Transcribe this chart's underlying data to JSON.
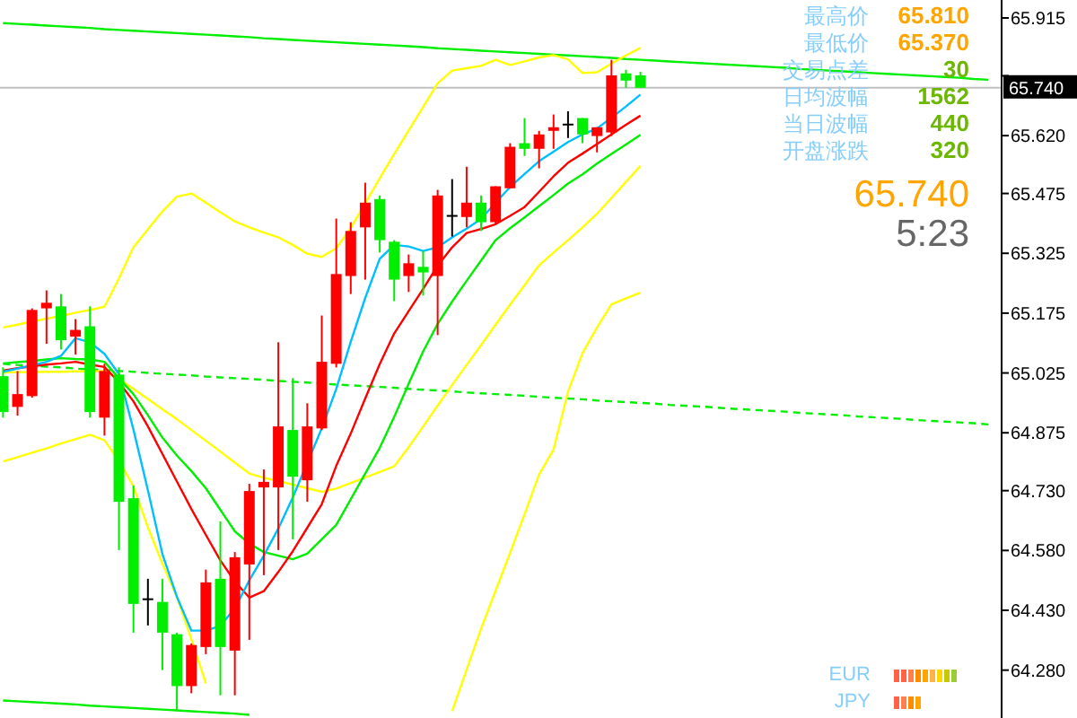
{
  "chart_data": {
    "type": "candlestick",
    "tick_labels": "y",
    "grid": false,
    "ylim": [
      64.16,
      65.96
    ],
    "yticks": [
      {
        "value": 64.28,
        "label": "64.280"
      },
      {
        "value": 64.43,
        "label": "64.430"
      },
      {
        "value": 64.58,
        "label": "64.580"
      },
      {
        "value": 64.73,
        "label": "64.730"
      },
      {
        "value": 64.875,
        "label": "64.875"
      },
      {
        "value": 65.025,
        "label": "65.025"
      },
      {
        "value": 65.175,
        "label": "65.175"
      },
      {
        "value": 65.325,
        "label": "65.325"
      },
      {
        "value": 65.475,
        "label": "65.475"
      },
      {
        "value": 65.62,
        "label": "65.620"
      },
      {
        "value": 65.77,
        "label": null
      },
      {
        "value": 65.915,
        "label": "65.915"
      }
    ],
    "categories": [
      null,
      null,
      null,
      null,
      null,
      null,
      null,
      null,
      null,
      null,
      null,
      null,
      null,
      null,
      null,
      null,
      null,
      null,
      null,
      null,
      null,
      null,
      null,
      null,
      null,
      null,
      null,
      null,
      null,
      null,
      null,
      null,
      null,
      null,
      null,
      null,
      null,
      null,
      null,
      null,
      null,
      null,
      null,
      null,
      null,
      null,
      null,
      null,
      null,
      null,
      null,
      null,
      null,
      null,
      null,
      null,
      null,
      null,
      null,
      null,
      null,
      null,
      null,
      null,
      null,
      null,
      null,
      null,
      null
    ],
    "colors": [
      "#00ee00",
      "#ff0000",
      "#ff0000",
      "#ff0000",
      "#00ee00",
      "#ff0000",
      "#00ee00",
      "#ff0000",
      "#00ee00",
      "#00ee00",
      "#000000",
      "#00ee00",
      "#00ee00",
      "#ff0000",
      "#ff0000",
      "#00ee00",
      "#ff0000",
      "#ff0000",
      "#ff0000",
      "#ff0000",
      "#00ee00",
      "#ff0000",
      "#ff0000",
      "#ff0000",
      "#ff0000",
      "#ff0000",
      "#00ee00",
      "#00ee00",
      "#ff0000",
      "#00ee00",
      "#ff0000",
      "#000000",
      "#ff0000",
      "#00ee00",
      "#ff0000",
      "#ff0000",
      "#00ee00",
      "#ff0000",
      "#ff0000",
      "#000000",
      "#00ee00",
      "#ff0000",
      "#ff0000",
      "#00ee00",
      "#00ee00",
      null,
      null,
      null,
      null,
      null,
      null,
      null,
      null,
      null,
      null,
      null,
      null,
      null,
      null,
      null,
      null,
      null,
      null,
      null,
      null,
      null,
      null,
      null,
      null
    ],
    "ohlc": [
      [
        65.017,
        65.039,
        64.913,
        64.927
      ],
      [
        64.94,
        65.03,
        64.918,
        64.972
      ],
      [
        64.967,
        65.187,
        64.963,
        65.183
      ],
      [
        65.187,
        65.232,
        65.098,
        65.201
      ],
      [
        65.192,
        65.223,
        65.084,
        65.107
      ],
      [
        65.116,
        65.16,
        65.071,
        65.133
      ],
      [
        65.142,
        65.192,
        64.913,
        64.927
      ],
      [
        64.913,
        65.048,
        64.868,
        65.03
      ],
      [
        65.021,
        65.039,
        64.581,
        64.702
      ],
      [
        64.711,
        64.743,
        64.374,
        64.446
      ],
      [
        64.46,
        64.509,
        64.392,
        64.46
      ],
      [
        64.451,
        64.509,
        64.28,
        64.374
      ],
      [
        64.37,
        64.374,
        64.177,
        64.24
      ],
      [
        64.24,
        64.347,
        64.222,
        64.343
      ],
      [
        64.338,
        64.532,
        64.32,
        64.5
      ],
      [
        64.509,
        64.653,
        64.217,
        64.338
      ],
      [
        64.329,
        64.576,
        64.217,
        64.563
      ],
      [
        64.545,
        64.747,
        64.356,
        64.729
      ],
      [
        64.738,
        64.783,
        64.518,
        64.752
      ],
      [
        64.738,
        65.102,
        64.581,
        64.891
      ],
      [
        64.882,
        65.012,
        64.608,
        64.765
      ],
      [
        64.756,
        64.949,
        64.702,
        64.891
      ],
      [
        64.886,
        65.169,
        64.882,
        65.053
      ],
      [
        65.048,
        65.412,
        65.039,
        65.273
      ],
      [
        65.268,
        65.403,
        65.223,
        65.381
      ],
      [
        65.39,
        65.502,
        65.259,
        65.452
      ],
      [
        65.461,
        65.47,
        65.327,
        65.358
      ],
      [
        65.354,
        65.358,
        65.205,
        65.259
      ],
      [
        65.268,
        65.322,
        65.228,
        65.3
      ],
      [
        65.291,
        65.331,
        65.219,
        65.277
      ],
      [
        65.268,
        65.484,
        65.12,
        65.47
      ],
      [
        65.421,
        65.511,
        65.367,
        65.421
      ],
      [
        65.416,
        65.542,
        65.39,
        65.452
      ],
      [
        65.452,
        65.47,
        65.381,
        65.403
      ],
      [
        65.403,
        65.493,
        65.399,
        65.493
      ],
      [
        65.488,
        65.601,
        65.488,
        65.592
      ],
      [
        65.601,
        65.664,
        65.569,
        65.587
      ],
      [
        65.587,
        65.632,
        65.538,
        65.623
      ],
      [
        65.632,
        65.673,
        65.587,
        65.641
      ],
      [
        65.65,
        65.681,
        65.614,
        65.65
      ],
      [
        65.664,
        65.664,
        65.601,
        65.623
      ],
      [
        65.619,
        65.641,
        65.578,
        65.641
      ],
      [
        65.628,
        65.81,
        65.619,
        65.771
      ],
      [
        65.776,
        65.785,
        65.74,
        65.758
      ],
      [
        65.771,
        65.78,
        65.74,
        65.74
      ],
      null,
      null,
      null,
      null,
      null,
      null,
      null,
      null,
      null,
      null,
      null,
      null,
      null,
      null,
      null,
      null,
      null,
      null,
      null,
      null,
      null,
      null,
      null,
      null
    ],
    "series": [
      {
        "type": "line",
        "color": "#00ee00",
        "values": [
          65.902,
          65.9,
          65.898,
          65.896,
          65.894,
          65.892,
          65.89,
          65.887,
          65.885,
          65.883,
          65.881,
          65.879,
          65.877,
          65.875,
          65.873,
          65.871,
          65.869,
          65.867,
          65.864,
          65.862,
          65.86,
          65.858,
          65.856,
          65.854,
          65.852,
          65.85,
          65.848,
          65.846,
          65.844,
          65.842,
          65.839,
          65.837,
          65.835,
          65.833,
          65.831,
          65.829,
          65.827,
          65.825,
          65.823,
          65.821,
          65.819,
          65.817,
          65.815,
          65.812,
          65.81,
          65.808,
          65.806,
          65.804,
          65.802,
          65.8,
          65.798,
          65.796,
          65.794,
          65.792,
          65.79,
          65.787,
          65.785,
          65.783,
          65.781,
          65.779,
          65.777,
          65.775,
          65.773,
          65.771,
          65.769,
          65.767,
          65.765,
          65.762,
          65.76
        ]
      },
      {
        "type": "line",
        "color": "#00ee00",
        "values": [
          64.204,
          64.202,
          64.2,
          64.198,
          64.196,
          64.194,
          64.191,
          64.189,
          64.187,
          64.185,
          64.183,
          64.181,
          64.179,
          64.177,
          64.175,
          64.173,
          64.171,
          64.168,
          null,
          null,
          null,
          null,
          null,
          null,
          null,
          null,
          null,
          null,
          null,
          null,
          null,
          null,
          null,
          null,
          null,
          null,
          null,
          null,
          null,
          null,
          null,
          null,
          null,
          null,
          null,
          null,
          null,
          null,
          null,
          null,
          null,
          null,
          null,
          null,
          null,
          null,
          null,
          null,
          null,
          null,
          null,
          null,
          null,
          null,
          null,
          null,
          null,
          null,
          null
        ]
      },
      {
        "type": "line",
        "color": "#00ee00",
        "line_style": "dashed",
        "values": [
          65.048,
          65.045,
          65.043,
          65.041,
          65.039,
          65.036,
          65.034,
          65.032,
          65.03,
          65.028,
          65.025,
          65.023,
          65.021,
          65.019,
          65.016,
          65.014,
          65.012,
          65.01,
          65.008,
          65.005,
          65.003,
          65.001,
          null,
          64.996,
          64.994,
          64.992,
          64.99,
          64.988,
          64.985,
          64.983,
          64.981,
          64.979,
          64.976,
          64.974,
          64.972,
          64.97,
          64.968,
          64.965,
          64.963,
          64.961,
          64.959,
          64.956,
          64.954,
          64.952,
          64.95,
          64.948,
          64.945,
          64.943,
          64.941,
          64.939,
          64.936,
          64.934,
          64.932,
          64.93,
          64.928,
          64.925,
          64.923,
          64.921,
          64.919,
          64.916,
          64.914,
          64.912,
          64.91,
          64.907,
          64.905,
          64.903,
          64.901,
          64.899,
          64.896
        ]
      },
      {
        "type": "line",
        "color": "#ffff00",
        "values": [
          65.139,
          65.146,
          65.154,
          65.161,
          65.168,
          65.176,
          65.183,
          65.191,
          65.262,
          65.34,
          65.385,
          65.43,
          65.467,
          65.475,
          65.452,
          65.428,
          65.405,
          65.39,
          65.377,
          65.365,
          65.346,
          65.324,
          65.316,
          65.338,
          65.388,
          65.45,
          65.513,
          65.574,
          65.633,
          65.692,
          65.751,
          65.783,
          65.789,
          65.795,
          65.81,
          65.797,
          65.806,
          65.816,
          65.822,
          65.811,
          65.777,
          65.779,
          65.801,
          65.821,
          65.84,
          null,
          null,
          null,
          null,
          null,
          null,
          null,
          null,
          null,
          null,
          null,
          null,
          null,
          null,
          null,
          null,
          null,
          null,
          null,
          null,
          null,
          null,
          null,
          null
        ]
      },
      {
        "type": "line",
        "color": "#ffff00",
        "values": [
          65.026,
          65.027,
          65.027,
          65.028,
          65.028,
          65.029,
          65.029,
          65.03,
          65.01,
          64.985,
          64.96,
          64.934,
          64.909,
          64.882,
          64.855,
          64.828,
          64.8,
          64.773,
          64.762,
          64.754,
          64.745,
          64.736,
          64.727,
          64.735,
          64.749,
          64.763,
          64.777,
          64.791,
          64.839,
          64.891,
          64.943,
          64.995,
          65.045,
          65.095,
          65.146,
          65.196,
          65.245,
          65.295,
          65.327,
          65.358,
          65.39,
          65.424,
          65.464,
          65.504,
          65.544,
          null,
          null,
          null,
          null,
          null,
          null,
          null,
          null,
          null,
          null,
          null,
          null,
          null,
          null,
          null,
          null,
          null,
          null,
          null,
          null,
          null,
          null,
          null,
          null
        ]
      },
      {
        "type": "line",
        "color": "#ffff00",
        "values": [
          64.803,
          64.814,
          64.825,
          64.836,
          64.848,
          64.859,
          64.87,
          64.856,
          64.805,
          64.741,
          64.638,
          64.547,
          64.463,
          64.357,
          64.247,
          null,
          null,
          null,
          null,
          null,
          null,
          null,
          null,
          null,
          null,
          null,
          null,
          null,
          null,
          null,
          null,
          64.177,
          64.281,
          64.384,
          64.479,
          64.574,
          64.671,
          64.77,
          64.833,
          64.978,
          65.075,
          65.139,
          65.197,
          65.212,
          65.226,
          null,
          null,
          null,
          null,
          null,
          null,
          null,
          null,
          null,
          null,
          null,
          null,
          null,
          null,
          null,
          null,
          null,
          null,
          null,
          null,
          null,
          null,
          null,
          null
        ]
      },
      {
        "type": "line",
        "color": "#00ee00",
        "values": [
          65.049,
          65.052,
          65.055,
          65.059,
          65.062,
          65.06,
          65.059,
          65.053,
          65.012,
          64.972,
          64.919,
          64.863,
          64.818,
          64.779,
          64.736,
          64.682,
          64.628,
          64.597,
          64.576,
          64.567,
          64.558,
          64.572,
          64.608,
          64.644,
          64.708,
          64.773,
          64.837,
          64.915,
          64.998,
          65.079,
          65.148,
          65.204,
          65.256,
          65.307,
          65.358,
          65.388,
          65.415,
          65.443,
          65.471,
          65.5,
          65.523,
          65.55,
          65.574,
          65.598,
          65.622,
          null,
          null,
          null,
          null,
          null,
          null,
          null,
          null,
          null,
          null,
          null,
          null,
          null,
          null,
          null,
          null,
          null,
          null,
          null,
          null,
          null,
          null,
          null,
          null
        ]
      },
      {
        "type": "line",
        "color": "#ff0000",
        "values": [
          65.031,
          65.037,
          65.042,
          65.046,
          65.049,
          65.053,
          65.046,
          65.04,
          65.002,
          64.954,
          64.891,
          64.822,
          64.753,
          64.684,
          64.619,
          64.555,
          64.502,
          64.462,
          64.478,
          64.526,
          64.578,
          64.637,
          64.696,
          64.792,
          64.873,
          64.961,
          65.047,
          65.124,
          65.18,
          65.236,
          65.294,
          65.34,
          65.376,
          65.386,
          65.398,
          65.419,
          65.441,
          65.479,
          65.518,
          65.552,
          65.575,
          65.599,
          65.623,
          65.647,
          65.67,
          null,
          null,
          null,
          null,
          null,
          null,
          null,
          null,
          null,
          null,
          null,
          null,
          null,
          null,
          null,
          null,
          null,
          null,
          null,
          null,
          null,
          null,
          null,
          null
        ]
      },
      {
        "type": "line",
        "color": "#00bfff",
        "values": [
          65.028,
          65.036,
          65.044,
          65.053,
          65.068,
          65.112,
          65.102,
          65.073,
          65.022,
          64.883,
          64.731,
          64.571,
          64.464,
          64.379,
          64.379,
          64.391,
          64.435,
          64.505,
          64.567,
          64.635,
          64.713,
          null,
          64.886,
          64.985,
          65.103,
          65.213,
          65.311,
          65.346,
          65.342,
          65.331,
          65.34,
          65.365,
          65.387,
          65.411,
          65.452,
          65.491,
          65.524,
          65.556,
          65.58,
          65.604,
          65.623,
          65.638,
          65.665,
          65.693,
          65.723,
          null,
          null,
          null,
          null,
          null,
          null,
          null,
          null,
          null,
          null,
          null,
          null,
          null,
          null,
          null,
          null,
          null,
          null,
          null,
          null,
          null,
          null,
          null,
          null
        ]
      }
    ],
    "ref_lines": [
      {
        "axis": "y",
        "value": 65.74,
        "label": "65.740",
        "color": "#c0c0c0"
      }
    ],
    "annotations": [
      "最高价",
      "65.810",
      "最低价",
      "65.370",
      "交易点差",
      "30",
      "日均波幅",
      "1562",
      "当日波幅",
      "440",
      "开盘涨跌",
      "320",
      "65.740",
      "5:23",
      "EUR",
      "JPY"
    ]
  }
}
